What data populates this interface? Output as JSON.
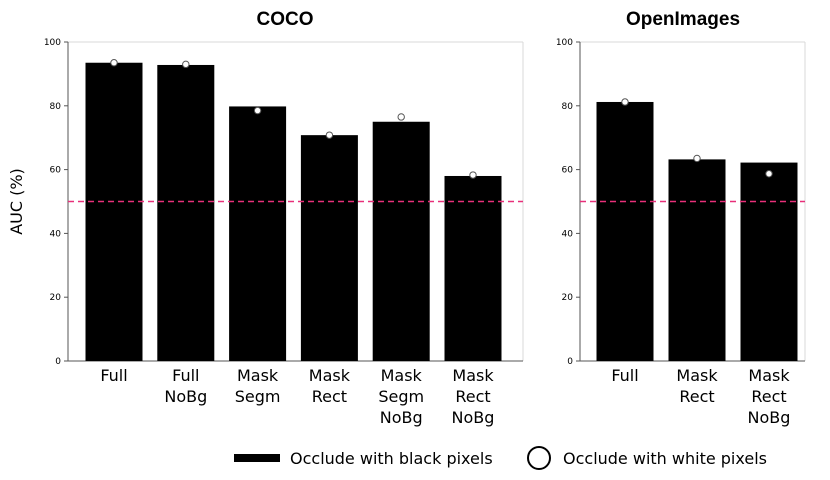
{
  "chart_data": [
    {
      "type": "bar",
      "title": "COCO",
      "ylabel": "AUC (%)",
      "xlabel": "",
      "ylim": [
        0,
        100
      ],
      "yticks": [
        0,
        20,
        40,
        60,
        80,
        100
      ],
      "categories": [
        [
          "Full"
        ],
        [
          "Full",
          "NoBg"
        ],
        [
          "Mask",
          "Segm"
        ],
        [
          "Mask",
          "Rect"
        ],
        [
          "Mask",
          "Segm",
          "NoBg"
        ],
        [
          "Mask",
          "Rect",
          "NoBg"
        ]
      ],
      "series": [
        {
          "name": "Occlude with black pixels",
          "values": [
            93.5,
            92.8,
            79.8,
            70.8,
            75.0,
            58.0
          ],
          "color": "#000000"
        },
        {
          "name": "Occlude with white pixels",
          "values": [
            93.5,
            93.0,
            78.5,
            70.8,
            76.5,
            58.3
          ],
          "color": "#ffffff"
        }
      ],
      "reference_line": {
        "y": 50,
        "color": "#e8307a",
        "style": "dashed"
      }
    },
    {
      "type": "bar",
      "title": "OpenImages",
      "ylabel": "",
      "xlabel": "",
      "ylim": [
        0,
        100
      ],
      "yticks": [
        0,
        20,
        40,
        60,
        80,
        100
      ],
      "categories": [
        [
          "Full"
        ],
        [
          "Mask",
          "Rect"
        ],
        [
          "Mask",
          "Rect",
          "NoBg"
        ]
      ],
      "series": [
        {
          "name": "Occlude with black pixels",
          "values": [
            81.2,
            63.2,
            62.2
          ],
          "color": "#000000"
        },
        {
          "name": "Occlude with white pixels",
          "values": [
            81.2,
            63.5,
            58.7
          ],
          "color": "#ffffff"
        }
      ],
      "reference_line": {
        "y": 50,
        "color": "#e8307a",
        "style": "dashed"
      }
    }
  ],
  "legend": {
    "placement": "bottom",
    "items": [
      {
        "label": "Occlude with black pixels",
        "marker": "bar"
      },
      {
        "label": "Occlude with white pixels",
        "marker": "circle"
      }
    ]
  }
}
